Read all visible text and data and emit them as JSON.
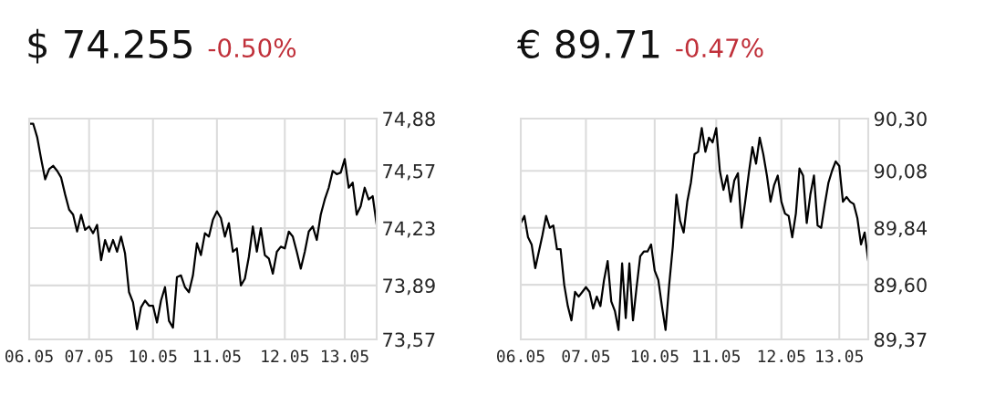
{
  "chart_data": [
    {
      "type": "line",
      "title": "$ 74.255",
      "subtitle": "-0.50%",
      "grid": true,
      "tick_labels": "xy",
      "ylim": [
        73.57,
        74.88
      ],
      "categories": [
        "06.05",
        null,
        null,
        null,
        null,
        null,
        null,
        null,
        null,
        null,
        null,
        null,
        null,
        null,
        null,
        "07.05",
        null,
        null,
        null,
        null,
        null,
        null,
        null,
        null,
        null,
        null,
        null,
        null,
        null,
        null,
        null,
        "10.05",
        null,
        null,
        null,
        null,
        null,
        null,
        null,
        null,
        null,
        null,
        null,
        null,
        null,
        null,
        null,
        "11.05",
        null,
        null,
        null,
        null,
        null,
        null,
        null,
        null,
        null,
        null,
        null,
        null,
        null,
        null,
        null,
        null,
        "12.05",
        null,
        null,
        null,
        null,
        null,
        null,
        null,
        null,
        null,
        null,
        null,
        null,
        null,
        null,
        "13.05",
        null,
        null,
        null,
        null,
        null,
        null,
        null,
        null
      ],
      "yticks": [
        {
          "value": 74.88,
          "label": "74,88"
        },
        {
          "value": 74.57,
          "label": "74,57"
        },
        {
          "value": 74.23,
          "label": "74,23"
        },
        {
          "value": 73.89,
          "label": "73,89"
        },
        {
          "value": 73.57,
          "label": "73,57"
        }
      ],
      "series": [
        {
          "color": "#000000",
          "values": [
            74.85,
            74.85,
            74.77,
            74.64,
            74.52,
            74.58,
            74.6,
            74.57,
            74.53,
            74.43,
            74.34,
            74.31,
            74.21,
            74.31,
            74.22,
            74.24,
            74.2,
            74.25,
            74.04,
            74.16,
            74.09,
            74.16,
            74.09,
            74.18,
            74.08,
            73.85,
            73.79,
            73.63,
            73.76,
            73.8,
            73.77,
            73.77,
            73.67,
            73.8,
            73.88,
            73.68,
            73.64,
            73.94,
            73.95,
            73.88,
            73.85,
            73.95,
            74.14,
            74.07,
            74.2,
            74.18,
            74.28,
            74.33,
            74.29,
            74.18,
            74.26,
            74.09,
            74.11,
            73.89,
            73.93,
            74.06,
            74.24,
            74.09,
            74.23,
            74.07,
            74.05,
            73.96,
            74.09,
            74.12,
            74.11,
            74.21,
            74.18,
            74.09,
            73.99,
            74.09,
            74.21,
            74.24,
            74.16,
            74.31,
            74.4,
            74.47,
            74.57,
            74.55,
            74.56,
            74.64,
            74.47,
            74.5,
            74.31,
            74.36,
            74.47,
            74.4,
            74.42,
            74.25
          ]
        }
      ]
    },
    {
      "type": "line",
      "title": "€ 89.71",
      "subtitle": "-0.47%",
      "grid": true,
      "tick_labels": "xy",
      "ylim": [
        89.37,
        90.3
      ],
      "categories": [
        "06.05",
        null,
        null,
        null,
        null,
        null,
        null,
        null,
        null,
        null,
        null,
        null,
        null,
        null,
        null,
        null,
        null,
        null,
        "07.05",
        null,
        null,
        null,
        null,
        null,
        null,
        null,
        null,
        null,
        null,
        null,
        null,
        null,
        null,
        null,
        null,
        null,
        null,
        "10.05",
        null,
        null,
        null,
        null,
        null,
        null,
        null,
        null,
        null,
        null,
        null,
        null,
        null,
        null,
        null,
        null,
        "11.05",
        null,
        null,
        null,
        null,
        null,
        null,
        null,
        null,
        null,
        null,
        null,
        null,
        null,
        null,
        null,
        null,
        null,
        "12.05",
        null,
        null,
        null,
        null,
        null,
        null,
        null,
        null,
        null,
        null,
        null,
        null,
        null,
        null,
        null,
        "13.05",
        null,
        null,
        null,
        null,
        null,
        null,
        null,
        null
      ],
      "yticks": [
        {
          "value": 90.3,
          "label": "90,30"
        },
        {
          "value": 90.08,
          "label": "90,08"
        },
        {
          "value": 89.84,
          "label": "89,84"
        },
        {
          "value": 89.6,
          "label": "89,60"
        },
        {
          "value": 89.37,
          "label": "89,37"
        }
      ],
      "series": [
        {
          "color": "#000000",
          "values": [
            89.86,
            89.89,
            89.8,
            89.77,
            89.67,
            89.74,
            89.81,
            89.89,
            89.84,
            89.85,
            89.75,
            89.75,
            89.6,
            89.51,
            89.45,
            89.57,
            89.55,
            89.57,
            89.59,
            89.57,
            89.5,
            89.55,
            89.51,
            89.62,
            89.7,
            89.53,
            89.49,
            89.41,
            89.69,
            89.46,
            89.69,
            89.45,
            89.59,
            89.72,
            89.74,
            89.74,
            89.77,
            89.66,
            89.62,
            89.51,
            89.41,
            89.6,
            89.76,
            89.98,
            89.87,
            89.82,
            89.95,
            90.03,
            90.15,
            90.16,
            90.26,
            90.16,
            90.22,
            90.2,
            90.26,
            90.08,
            90.0,
            90.06,
            89.95,
            90.04,
            90.07,
            89.84,
            89.95,
            90.07,
            90.18,
            90.11,
            90.22,
            90.15,
            90.06,
            89.95,
            90.02,
            90.06,
            89.95,
            89.9,
            89.89,
            89.8,
            89.9,
            90.09,
            90.06,
            89.86,
            89.98,
            90.06,
            89.85,
            89.84,
            89.94,
            90.03,
            90.08,
            90.12,
            90.1,
            89.95,
            89.97,
            89.95,
            89.94,
            89.88,
            89.77,
            89.82,
            89.7
          ]
        }
      ]
    }
  ]
}
